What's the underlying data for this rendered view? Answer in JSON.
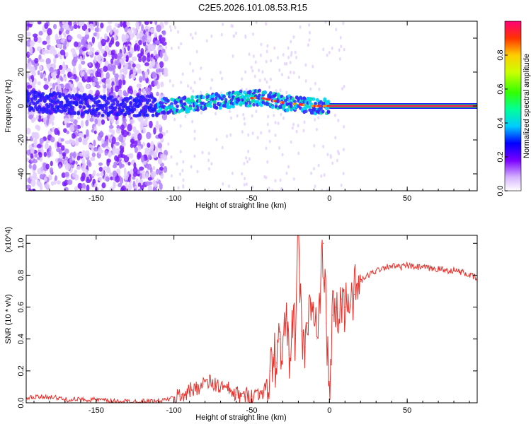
{
  "title": "C2E5.2026.101.08.53.R15",
  "chart_data": [
    {
      "type": "heatmap",
      "xlabel": "Height of straight line (km)",
      "ylabel": "Frequency (Hz)",
      "xlim": [
        -195,
        95
      ],
      "ylim": [
        -50,
        50
      ],
      "x_ticks": [
        -150,
        -100,
        -50,
        0,
        50
      ],
      "y_ticks": [
        -40,
        -20,
        0,
        20,
        40
      ],
      "colorbar": {
        "label": "Normalized spectral amplitude",
        "range": [
          0,
          1
        ],
        "ticks": [
          0.0,
          0.2,
          0.4,
          0.6,
          0.8
        ],
        "colormap": "rainbow"
      },
      "features": {
        "noise_region_km": [
          -195,
          -105
        ],
        "signal_band_center_hz": [
          [
            -195,
            3
          ],
          [
            -150,
            0
          ],
          [
            -100,
            0
          ],
          [
            -80,
            2
          ],
          [
            -60,
            4
          ],
          [
            -45,
            5
          ],
          [
            -30,
            2
          ],
          [
            -20,
            1
          ],
          [
            -10,
            0
          ],
          [
            0,
            0
          ],
          [
            95,
            0
          ]
        ],
        "steady_line_start_km": 0,
        "steady_line_freq_hz": 0
      }
    },
    {
      "type": "line",
      "xlabel": "Height of straight line (km)",
      "ylabel": "SNR (10 * v/v)",
      "y_multiplier": "(x10^4)",
      "xlim": [
        -195,
        95
      ],
      "ylim": [
        0,
        1.05
      ],
      "x_ticks": [
        -150,
        -100,
        -50,
        0,
        50
      ],
      "y_ticks": [
        0.0,
        0.2,
        0.4,
        0.6,
        0.8,
        1.0
      ],
      "series": [
        {
          "color": "#e8302a",
          "x": [
            -195,
            -180,
            -170,
            -160,
            -150,
            -140,
            -130,
            -120,
            -110,
            -100,
            -95,
            -90,
            -85,
            -80,
            -75,
            -70,
            -65,
            -60,
            -55,
            -50,
            -45,
            -40,
            -38,
            -36,
            -34,
            -32,
            -30,
            -28,
            -26,
            -24,
            -22,
            -20,
            -18,
            -16,
            -14,
            -12,
            -10,
            -8,
            -6,
            -4,
            -2,
            0,
            2,
            4,
            6,
            8,
            10,
            12,
            14,
            16,
            18,
            20,
            25,
            30,
            35,
            40,
            45,
            50,
            55,
            60,
            65,
            70,
            75,
            80,
            85,
            90,
            95
          ],
          "y": [
            0.03,
            0.04,
            0.02,
            0.02,
            0.02,
            0.01,
            0.01,
            0.01,
            0.01,
            0.03,
            0.05,
            0.07,
            0.1,
            0.13,
            0.12,
            0.1,
            0.08,
            0.05,
            0.04,
            0.05,
            0.06,
            0.1,
            0.2,
            0.3,
            0.25,
            0.4,
            0.35,
            0.5,
            0.3,
            0.55,
            0.4,
            1.05,
            0.45,
            0.35,
            0.5,
            0.55,
            0.6,
            0.4,
            0.65,
            1.0,
            0.5,
            0.02,
            0.55,
            0.6,
            0.5,
            0.65,
            0.6,
            0.65,
            0.7,
            0.68,
            0.72,
            0.76,
            0.8,
            0.83,
            0.85,
            0.86,
            0.85,
            0.86,
            0.85,
            0.85,
            0.84,
            0.84,
            0.83,
            0.83,
            0.82,
            0.8,
            0.78
          ]
        }
      ]
    }
  ]
}
